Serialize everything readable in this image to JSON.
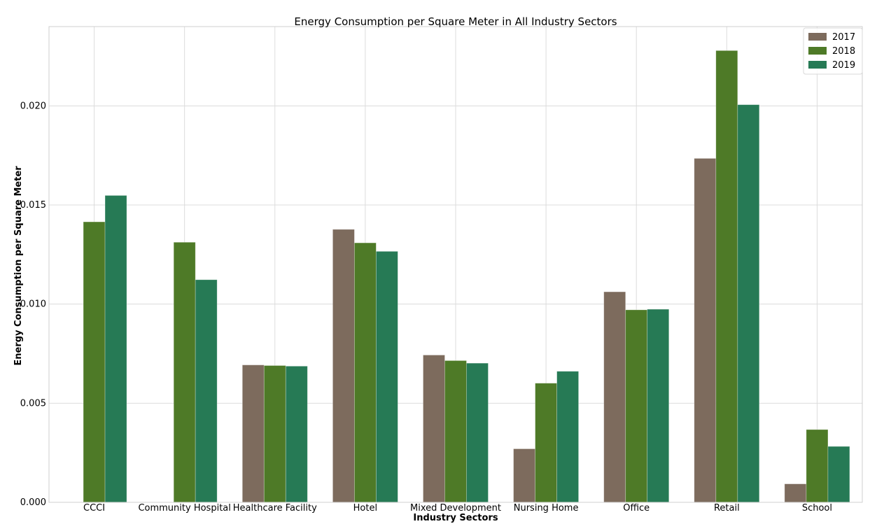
{
  "chart_data": {
    "type": "bar",
    "title": "Energy Consumption per Square Meter in All Industry Sectors",
    "xlabel": "Industry Sectors",
    "ylabel": "Energy Consumption per Square Meter",
    "categories": [
      "CCCI",
      "Community Hospital",
      "Healthcare Facility",
      "Hotel",
      "Mixed Development",
      "Nursing Home",
      "Office",
      "Retail",
      "School"
    ],
    "series": [
      {
        "name": "2017",
        "color": "#7d6b5d",
        "values": [
          0,
          0,
          0.00693,
          0.01377,
          0.00743,
          0.0027,
          0.01062,
          0.01735,
          0.00093
        ]
      },
      {
        "name": "2018",
        "color": "#4e7a27",
        "values": [
          0.01415,
          0.01312,
          0.0069,
          0.01309,
          0.00715,
          0.00601,
          0.00971,
          0.02279,
          0.00367
        ]
      },
      {
        "name": "2019",
        "color": "#267a55",
        "values": [
          0.01548,
          0.01123,
          0.00687,
          0.01266,
          0.00702,
          0.00661,
          0.00974,
          0.02006,
          0.00282
        ]
      }
    ],
    "ylim": [
      0,
      0.024
    ],
    "yticks": [
      "0.000",
      "0.005",
      "0.010",
      "0.015",
      "0.020"
    ],
    "ytick_values": [
      0,
      0.005,
      0.01,
      0.015,
      0.02
    ],
    "grid": true,
    "legend_position": "top-right"
  }
}
